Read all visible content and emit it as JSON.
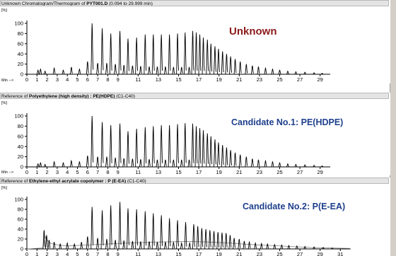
{
  "colors": {
    "trace": "#000000",
    "trace2": "#808080",
    "unknown_label": "#8b1a1a",
    "candidate_label": "#1e3f8c"
  },
  "chart_data": [
    {
      "type": "line",
      "title_parts": [
        "Unknown Chromatogram/Thermogram of ",
        "PYT001.D",
        " (0.094 to 29.999 min)"
      ],
      "ylabel": "[%]",
      "xlabel": "Min -->",
      "label": "Unknown",
      "xlim": [
        0,
        30
      ],
      "ylim": [
        0,
        100
      ],
      "xticks": [
        0,
        1,
        2,
        3,
        4,
        5,
        6,
        7,
        8,
        9,
        11,
        13,
        15,
        17,
        19,
        21,
        23,
        25,
        27,
        29
      ],
      "yticks": [
        0,
        20,
        40,
        60,
        80,
        100
      ],
      "peaks": [
        [
          1.1,
          8
        ],
        [
          1.35,
          10
        ],
        [
          1.8,
          6
        ],
        [
          2.7,
          12
        ],
        [
          3.6,
          8
        ],
        [
          4.4,
          14
        ],
        [
          5.2,
          10
        ],
        [
          6.0,
          25
        ],
        [
          6.45,
          100
        ],
        [
          7.0,
          22
        ],
        [
          7.45,
          90
        ],
        [
          7.9,
          22
        ],
        [
          8.3,
          80
        ],
        [
          8.75,
          20
        ],
        [
          9.2,
          85
        ],
        [
          9.6,
          18
        ],
        [
          10.0,
          70
        ],
        [
          10.45,
          17
        ],
        [
          10.85,
          72
        ],
        [
          11.25,
          16
        ],
        [
          11.7,
          78
        ],
        [
          12.1,
          15
        ],
        [
          12.5,
          78
        ],
        [
          12.9,
          15
        ],
        [
          13.3,
          78
        ],
        [
          13.7,
          15
        ],
        [
          14.1,
          78
        ],
        [
          14.5,
          14
        ],
        [
          14.9,
          80
        ],
        [
          15.3,
          14
        ],
        [
          15.65,
          82
        ],
        [
          16.05,
          14
        ],
        [
          16.4,
          85
        ],
        [
          16.75,
          82
        ],
        [
          17.1,
          78
        ],
        [
          17.45,
          72
        ],
        [
          17.85,
          68
        ],
        [
          18.2,
          60
        ],
        [
          18.6,
          55
        ],
        [
          18.95,
          50
        ],
        [
          19.35,
          45
        ],
        [
          19.75,
          40
        ],
        [
          20.15,
          35
        ],
        [
          20.6,
          30
        ],
        [
          21.1,
          25
        ],
        [
          21.7,
          20
        ],
        [
          22.3,
          17
        ],
        [
          22.9,
          15
        ],
        [
          23.6,
          12
        ],
        [
          24.3,
          10
        ],
        [
          25.0,
          8
        ],
        [
          25.8,
          6
        ],
        [
          26.6,
          5
        ],
        [
          27.5,
          4
        ],
        [
          28.4,
          3
        ],
        [
          29.2,
          2
        ]
      ],
      "baseline": []
    },
    {
      "type": "line",
      "title_parts": [
        "Reference of ",
        "Polyethylene (high density) : PE(HDPE)",
        "  (C1-C40)"
      ],
      "ylabel": "[%]",
      "xlabel": "Min -->",
      "label": "Candidate No.1: PE(HDPE)",
      "xlim": [
        0,
        30
      ],
      "ylim": [
        0,
        100
      ],
      "xticks": [
        0,
        1,
        2,
        3,
        4,
        5,
        6,
        7,
        8,
        9,
        11,
        13,
        15,
        17,
        19,
        21,
        23,
        25,
        27,
        29
      ],
      "yticks": [
        0,
        20,
        40,
        60,
        80,
        100
      ],
      "peaks": [
        [
          1.1,
          6
        ],
        [
          1.35,
          8
        ],
        [
          1.8,
          5
        ],
        [
          2.7,
          10
        ],
        [
          3.6,
          8
        ],
        [
          4.4,
          12
        ],
        [
          5.2,
          10
        ],
        [
          6.0,
          22
        ],
        [
          6.45,
          100
        ],
        [
          7.0,
          20
        ],
        [
          7.45,
          88
        ],
        [
          7.9,
          20
        ],
        [
          8.3,
          82
        ],
        [
          8.75,
          18
        ],
        [
          9.2,
          85
        ],
        [
          9.6,
          17
        ],
        [
          10.0,
          70
        ],
        [
          10.45,
          16
        ],
        [
          10.85,
          75
        ],
        [
          11.25,
          15
        ],
        [
          11.7,
          78
        ],
        [
          12.1,
          15
        ],
        [
          12.5,
          80
        ],
        [
          12.9,
          14
        ],
        [
          13.3,
          82
        ],
        [
          13.7,
          14
        ],
        [
          14.1,
          82
        ],
        [
          14.5,
          14
        ],
        [
          14.9,
          84
        ],
        [
          15.3,
          14
        ],
        [
          15.65,
          86
        ],
        [
          16.05,
          14
        ],
        [
          16.4,
          85
        ],
        [
          16.75,
          80
        ],
        [
          17.1,
          76
        ],
        [
          17.45,
          72
        ],
        [
          17.85,
          66
        ],
        [
          18.2,
          60
        ],
        [
          18.6,
          54
        ],
        [
          18.95,
          48
        ],
        [
          19.35,
          43
        ],
        [
          19.75,
          38
        ],
        [
          20.15,
          33
        ],
        [
          20.6,
          28
        ],
        [
          21.1,
          24
        ],
        [
          21.7,
          20
        ],
        [
          22.3,
          16
        ],
        [
          22.9,
          14
        ],
        [
          23.6,
          12
        ],
        [
          24.3,
          10
        ],
        [
          25.0,
          8
        ],
        [
          25.8,
          6
        ],
        [
          26.6,
          5
        ],
        [
          27.5,
          4
        ],
        [
          28.4,
          3
        ],
        [
          29.2,
          2
        ]
      ],
      "baseline": []
    },
    {
      "type": "line",
      "title_parts": [
        "Reference of ",
        "Ethylene-ethyl acrylate copolymer : P (E-EA)",
        "  (C1-C40)"
      ],
      "ylabel": "[%]",
      "xlabel": "",
      "label": "Candidate No.2: P(E-EA)",
      "xlim": [
        0,
        32
      ],
      "ylim": [
        0,
        100
      ],
      "xticks": [
        0,
        1,
        2,
        3,
        4,
        5,
        6,
        7,
        8,
        9,
        11,
        13,
        15,
        17,
        19,
        21,
        23,
        25,
        27,
        29,
        31
      ],
      "yticks": [
        0,
        20,
        40,
        60,
        80,
        100
      ],
      "peaks": [
        [
          1.7,
          38
        ],
        [
          1.95,
          28
        ],
        [
          2.2,
          18
        ],
        [
          2.7,
          14
        ],
        [
          3.3,
          10
        ],
        [
          4.0,
          12
        ],
        [
          4.7,
          10
        ],
        [
          5.4,
          14
        ],
        [
          6.0,
          25
        ],
        [
          6.45,
          85
        ],
        [
          7.0,
          22
        ],
        [
          7.45,
          78
        ],
        [
          7.9,
          20
        ],
        [
          8.3,
          88
        ],
        [
          8.75,
          18
        ],
        [
          9.2,
          95
        ],
        [
          9.6,
          17
        ],
        [
          10.0,
          82
        ],
        [
          10.45,
          16
        ],
        [
          10.85,
          80
        ],
        [
          11.25,
          15
        ],
        [
          11.7,
          76
        ],
        [
          12.1,
          15
        ],
        [
          12.5,
          72
        ],
        [
          12.9,
          14
        ],
        [
          13.3,
          68
        ],
        [
          13.7,
          14
        ],
        [
          14.1,
          62
        ],
        [
          14.5,
          13
        ],
        [
          14.9,
          58
        ],
        [
          15.3,
          12
        ],
        [
          15.7,
          54
        ],
        [
          16.1,
          12
        ],
        [
          16.5,
          50
        ],
        [
          16.9,
          46
        ],
        [
          17.3,
          42
        ],
        [
          17.7,
          40
        ],
        [
          18.1,
          38
        ],
        [
          18.5,
          36
        ],
        [
          18.9,
          34
        ],
        [
          19.3,
          33
        ],
        [
          19.7,
          32
        ],
        [
          20.1,
          28
        ],
        [
          20.5,
          22
        ],
        [
          21.0,
          20
        ],
        [
          21.5,
          16
        ],
        [
          22.0,
          14
        ],
        [
          22.6,
          12
        ],
        [
          23.2,
          11
        ],
        [
          23.8,
          10
        ],
        [
          24.5,
          9
        ],
        [
          25.2,
          8
        ],
        [
          25.9,
          7
        ],
        [
          26.7,
          6
        ],
        [
          27.5,
          5
        ],
        [
          28.4,
          4
        ],
        [
          29.3,
          3
        ],
        [
          30.2,
          2
        ]
      ],
      "baseline": [
        [
          0,
          0
        ],
        [
          1.6,
          2
        ],
        [
          1.8,
          25
        ],
        [
          2.0,
          18
        ],
        [
          2.3,
          12
        ],
        [
          3.0,
          8
        ],
        [
          4.0,
          6
        ],
        [
          6.0,
          8
        ],
        [
          8.0,
          10
        ],
        [
          10.0,
          12
        ],
        [
          13.0,
          14
        ],
        [
          16.0,
          15
        ],
        [
          18.0,
          14
        ],
        [
          20.0,
          12
        ],
        [
          22.0,
          9
        ],
        [
          24.0,
          7
        ],
        [
          26.0,
          5
        ],
        [
          28.0,
          3
        ],
        [
          30.0,
          2
        ],
        [
          32.0,
          1
        ]
      ]
    }
  ]
}
